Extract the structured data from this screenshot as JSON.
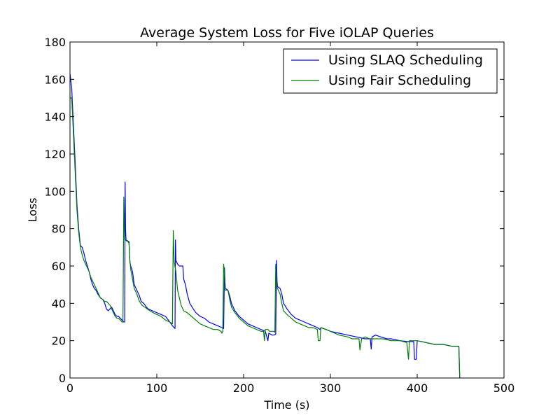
{
  "chart_data": {
    "type": "line",
    "title": "Average System Loss for Five iOLAP Queries",
    "xlabel": "Time (s)",
    "ylabel": "Loss",
    "xlim": [
      0,
      500
    ],
    "ylim": [
      0,
      180
    ],
    "xticks": [
      0,
      100,
      200,
      300,
      400,
      500
    ],
    "yticks": [
      0,
      20,
      40,
      60,
      80,
      100,
      120,
      140,
      160,
      180
    ],
    "grid": false,
    "legend_position": "top-right",
    "series": [
      {
        "name": "Using SLAQ Scheduling",
        "color": "#0000ff",
        "points": [
          [
            0,
            163
          ],
          [
            2,
            155
          ],
          [
            4,
            135
          ],
          [
            6,
            115
          ],
          [
            8,
            93
          ],
          [
            10,
            80
          ],
          [
            12,
            71
          ],
          [
            14,
            70
          ],
          [
            16,
            67
          ],
          [
            18,
            63
          ],
          [
            20,
            60
          ],
          [
            22,
            57
          ],
          [
            24,
            53
          ],
          [
            26,
            50
          ],
          [
            28,
            48
          ],
          [
            30,
            47
          ],
          [
            32,
            45
          ],
          [
            35,
            43
          ],
          [
            38,
            42
          ],
          [
            40,
            40
          ],
          [
            42,
            37
          ],
          [
            44,
            36
          ],
          [
            46,
            37
          ],
          [
            48,
            38
          ],
          [
            50,
            36
          ],
          [
            52,
            34
          ],
          [
            54,
            33
          ],
          [
            56,
            33
          ],
          [
            58,
            32
          ],
          [
            60,
            31
          ],
          [
            62,
            30
          ],
          [
            63,
            30
          ],
          [
            63.5,
            105
          ],
          [
            64,
            80
          ],
          [
            64.5,
            74
          ],
          [
            68,
            73
          ],
          [
            69,
            62
          ],
          [
            70,
            60
          ],
          [
            72,
            57
          ],
          [
            74,
            50
          ],
          [
            77,
            47
          ],
          [
            80,
            44
          ],
          [
            82,
            41
          ],
          [
            85,
            40
          ],
          [
            88,
            38
          ],
          [
            90,
            37
          ],
          [
            95,
            36
          ],
          [
            100,
            35
          ],
          [
            105,
            34
          ],
          [
            110,
            33
          ],
          [
            115,
            30
          ],
          [
            118,
            28
          ],
          [
            120,
            27
          ],
          [
            121,
            26.5
          ],
          [
            121.5,
            74
          ],
          [
            122,
            63
          ],
          [
            124,
            61
          ],
          [
            126,
            60
          ],
          [
            130,
            60
          ],
          [
            131,
            53
          ],
          [
            133,
            50
          ],
          [
            135,
            45
          ],
          [
            138,
            40
          ],
          [
            142,
            37
          ],
          [
            145,
            35
          ],
          [
            150,
            33
          ],
          [
            155,
            32
          ],
          [
            160,
            30
          ],
          [
            165,
            29
          ],
          [
            170,
            28
          ],
          [
            175,
            27
          ],
          [
            177,
            26.5
          ],
          [
            178,
            59
          ],
          [
            178.5,
            52
          ],
          [
            179,
            48
          ],
          [
            182,
            47
          ],
          [
            184,
            44
          ],
          [
            186,
            40
          ],
          [
            190,
            36
          ],
          [
            195,
            33
          ],
          [
            200,
            31
          ],
          [
            205,
            29
          ],
          [
            210,
            28
          ],
          [
            215,
            27
          ],
          [
            220,
            26
          ],
          [
            225,
            25
          ],
          [
            228,
            20
          ],
          [
            229,
            24
          ],
          [
            233,
            23
          ],
          [
            235,
            23
          ],
          [
            237,
            23.5
          ],
          [
            238,
            63
          ],
          [
            238.5,
            52
          ],
          [
            239,
            49
          ],
          [
            242,
            48
          ],
          [
            244,
            45
          ],
          [
            246,
            40
          ],
          [
            250,
            37
          ],
          [
            255,
            34
          ],
          [
            260,
            32
          ],
          [
            265,
            31
          ],
          [
            270,
            30
          ],
          [
            275,
            29
          ],
          [
            280,
            28
          ],
          [
            285,
            27
          ],
          [
            288,
            26
          ],
          [
            289,
            27
          ],
          [
            295,
            26
          ],
          [
            300,
            25
          ],
          [
            310,
            24
          ],
          [
            320,
            23
          ],
          [
            330,
            22
          ],
          [
            340,
            21
          ],
          [
            346,
            21
          ],
          [
            347,
            15.5
          ],
          [
            348,
            22
          ],
          [
            352,
            23
          ],
          [
            358,
            22
          ],
          [
            365,
            21
          ],
          [
            370,
            21
          ],
          [
            380,
            20
          ],
          [
            390,
            19.5
          ],
          [
            396,
            19.5
          ],
          [
            397,
            10
          ],
          [
            399,
            10
          ],
          [
            400,
            20
          ],
          [
            410,
            19
          ],
          [
            420,
            18
          ],
          [
            430,
            18
          ],
          [
            440,
            17
          ],
          [
            447,
            17
          ],
          [
            448,
            16.5
          ],
          [
            449,
            0
          ]
        ]
      },
      {
        "name": "Using Fair Scheduling",
        "color": "#008000",
        "points": [
          [
            0,
            150
          ],
          [
            2,
            150
          ],
          [
            4,
            130
          ],
          [
            6,
            110
          ],
          [
            8,
            90
          ],
          [
            10,
            78
          ],
          [
            12,
            70
          ],
          [
            14,
            66
          ],
          [
            16,
            63
          ],
          [
            18,
            61
          ],
          [
            20,
            59
          ],
          [
            22,
            57
          ],
          [
            24,
            54
          ],
          [
            26,
            52
          ],
          [
            28,
            50
          ],
          [
            30,
            48
          ],
          [
            32,
            46
          ],
          [
            35,
            43
          ],
          [
            38,
            42
          ],
          [
            40,
            41
          ],
          [
            42,
            41
          ],
          [
            44,
            40
          ],
          [
            46,
            39
          ],
          [
            48,
            37
          ],
          [
            50,
            35
          ],
          [
            52,
            33
          ],
          [
            54,
            32
          ],
          [
            56,
            32
          ],
          [
            58,
            31
          ],
          [
            60,
            30
          ],
          [
            61,
            30
          ],
          [
            62,
            97
          ],
          [
            63,
            74
          ],
          [
            67,
            73
          ],
          [
            68,
            72
          ],
          [
            69,
            63
          ],
          [
            70,
            58
          ],
          [
            72,
            53
          ],
          [
            74,
            48
          ],
          [
            77,
            45
          ],
          [
            80,
            41
          ],
          [
            83,
            39
          ],
          [
            86,
            38
          ],
          [
            89,
            37
          ],
          [
            92,
            36
          ],
          [
            96,
            35
          ],
          [
            100,
            34
          ],
          [
            105,
            33
          ],
          [
            110,
            31
          ],
          [
            115,
            30
          ],
          [
            118,
            29
          ],
          [
            119,
            79
          ],
          [
            120,
            62
          ],
          [
            122,
            57
          ],
          [
            124,
            47
          ],
          [
            126,
            43
          ],
          [
            128,
            39
          ],
          [
            131,
            36
          ],
          [
            135,
            35
          ],
          [
            140,
            33
          ],
          [
            145,
            31
          ],
          [
            150,
            29
          ],
          [
            155,
            28
          ],
          [
            160,
            27
          ],
          [
            165,
            26
          ],
          [
            170,
            26
          ],
          [
            174,
            25
          ],
          [
            175,
            24
          ],
          [
            176,
            25
          ],
          [
            177,
            61
          ],
          [
            178,
            56
          ],
          [
            179,
            47
          ],
          [
            182,
            47
          ],
          [
            184,
            42
          ],
          [
            186,
            38
          ],
          [
            190,
            35
          ],
          [
            195,
            32
          ],
          [
            200,
            30
          ],
          [
            205,
            28
          ],
          [
            210,
            27
          ],
          [
            215,
            26
          ],
          [
            220,
            25
          ],
          [
            223,
            25
          ],
          [
            224,
            20
          ],
          [
            225,
            26
          ],
          [
            228,
            26
          ],
          [
            230,
            25
          ],
          [
            235,
            25
          ],
          [
            236,
            24.5
          ],
          [
            237,
            61
          ],
          [
            238,
            49
          ],
          [
            240,
            47
          ],
          [
            242,
            45
          ],
          [
            244,
            40
          ],
          [
            246,
            36
          ],
          [
            250,
            34
          ],
          [
            255,
            32
          ],
          [
            260,
            30
          ],
          [
            265,
            29
          ],
          [
            270,
            28
          ],
          [
            275,
            27
          ],
          [
            280,
            27
          ],
          [
            285,
            26
          ],
          [
            286,
            20
          ],
          [
            288,
            20
          ],
          [
            289,
            27
          ],
          [
            295,
            26
          ],
          [
            300,
            25
          ],
          [
            310,
            23
          ],
          [
            320,
            22
          ],
          [
            325,
            21
          ],
          [
            330,
            21
          ],
          [
            333,
            21
          ],
          [
            334,
            15
          ],
          [
            336,
            21
          ],
          [
            340,
            22
          ],
          [
            345,
            21
          ],
          [
            350,
            21
          ],
          [
            360,
            21
          ],
          [
            370,
            20
          ],
          [
            380,
            20
          ],
          [
            388,
            19
          ],
          [
            390,
            10
          ],
          [
            391,
            20
          ],
          [
            400,
            20
          ],
          [
            410,
            19
          ],
          [
            420,
            18
          ],
          [
            430,
            18
          ],
          [
            440,
            17
          ],
          [
            448,
            17
          ],
          [
            449,
            0
          ]
        ]
      }
    ]
  }
}
